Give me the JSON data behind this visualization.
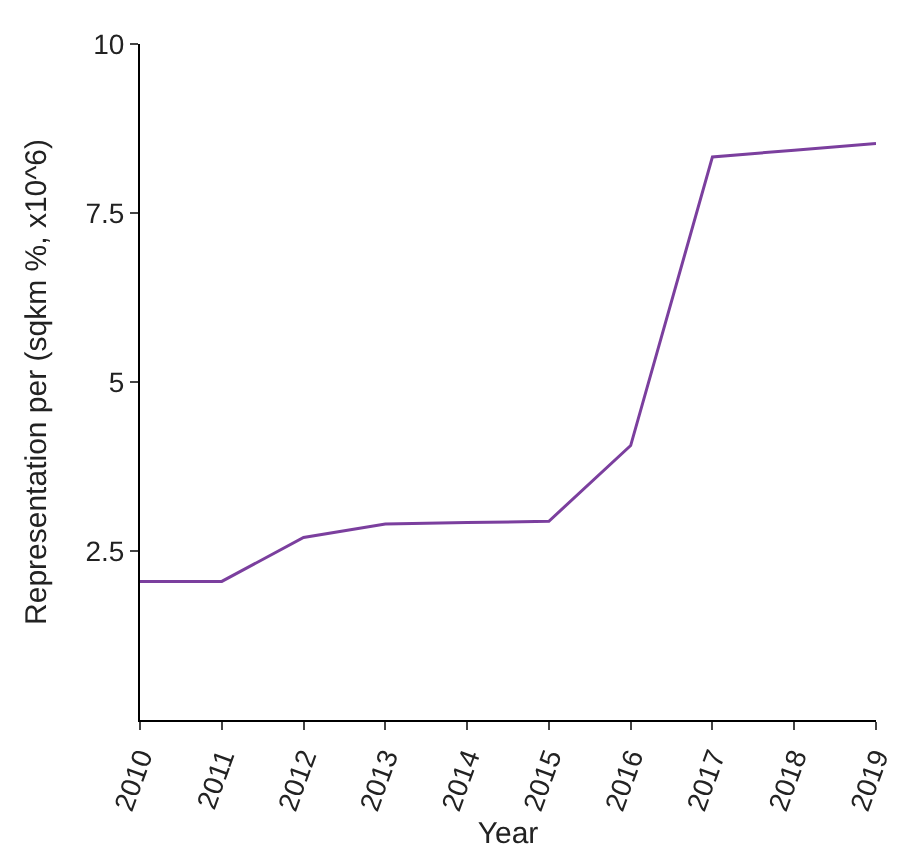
{
  "chart_data": {
    "type": "line",
    "xlabel": "Year",
    "ylabel": "Representation per (sqkm %, x10^6)",
    "x": [
      2010,
      2011,
      2012,
      2013,
      2014,
      2015,
      2016,
      2017,
      2018,
      2019
    ],
    "series": [
      {
        "color": "#7b3f9e",
        "values": [
          2.05,
          2.05,
          2.7,
          2.9,
          2.92,
          2.94,
          4.06,
          8.33,
          8.43,
          8.53
        ]
      }
    ],
    "xlim": [
      2010,
      2019
    ],
    "xticks": [
      2010,
      2011,
      2012,
      2013,
      2014,
      2015,
      2016,
      2017,
      2018,
      2019
    ],
    "ylim": [
      0,
      10
    ],
    "yticks": [
      2.5,
      5,
      7.5,
      10
    ],
    "legend": false,
    "marker": "none",
    "line_style": "solid"
  }
}
